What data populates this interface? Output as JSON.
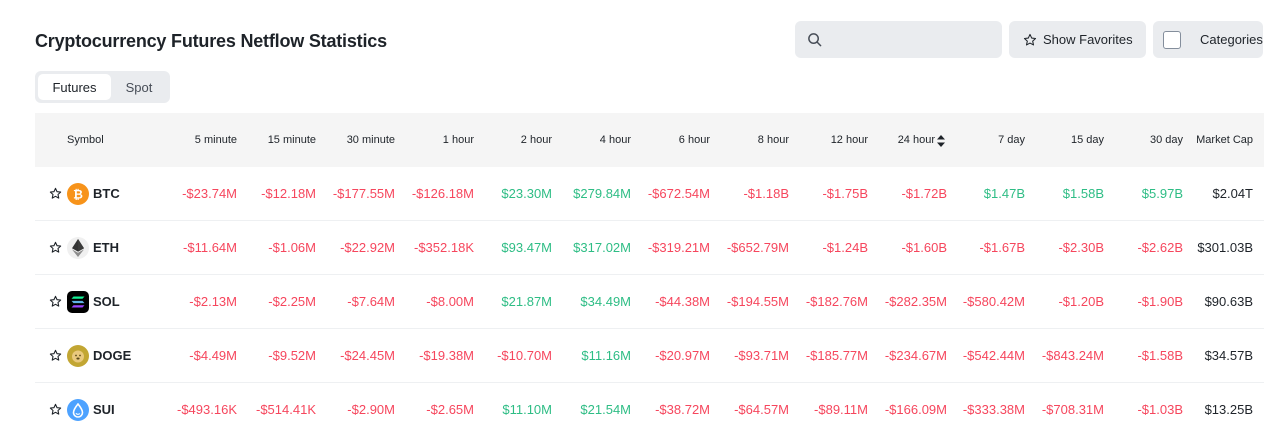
{
  "page": {
    "title": "Cryptocurrency Futures Netflow Statistics"
  },
  "toolbar": {
    "search_placeholder": "",
    "show_favorites_label": "Show Favorites",
    "categories_label": "Categories"
  },
  "tabs": [
    {
      "label": "Futures",
      "active": true
    },
    {
      "label": "Spot",
      "active": false
    }
  ],
  "colors": {
    "negative": "#f6465d",
    "positive": "#2ebd85",
    "header_bg": "#f5f5f5"
  },
  "table": {
    "headers": [
      "Symbol",
      "5 minute",
      "15 minute",
      "30 minute",
      "1 hour",
      "2 hour",
      "4 hour",
      "6 hour",
      "8 hour",
      "12 hour",
      "24 hour",
      "7 day",
      "15 day",
      "30 day",
      "Market Cap"
    ],
    "sorted_column": "24 hour",
    "rows": [
      {
        "symbol": "BTC",
        "icon": "bitcoin-icon",
        "values": [
          "-$23.74M",
          "-$12.18M",
          "-$177.55M",
          "-$126.18M",
          "$23.30M",
          "$279.84M",
          "-$672.54M",
          "-$1.18B",
          "-$1.75B",
          "-$1.72B",
          "$1.47B",
          "$1.58B",
          "$5.97B"
        ],
        "market_cap": "$2.04T"
      },
      {
        "symbol": "ETH",
        "icon": "ethereum-icon",
        "values": [
          "-$11.64M",
          "-$1.06M",
          "-$22.92M",
          "-$352.18K",
          "$93.47M",
          "$317.02M",
          "-$319.21M",
          "-$652.79M",
          "-$1.24B",
          "-$1.60B",
          "-$1.67B",
          "-$2.30B",
          "-$2.62B"
        ],
        "market_cap": "$301.03B"
      },
      {
        "symbol": "SOL",
        "icon": "solana-icon",
        "values": [
          "-$2.13M",
          "-$2.25M",
          "-$7.64M",
          "-$8.00M",
          "$21.87M",
          "$34.49M",
          "-$44.38M",
          "-$194.55M",
          "-$182.76M",
          "-$282.35M",
          "-$580.42M",
          "-$1.20B",
          "-$1.90B"
        ],
        "market_cap": "$90.63B"
      },
      {
        "symbol": "DOGE",
        "icon": "dogecoin-icon",
        "values": [
          "-$4.49M",
          "-$9.52M",
          "-$24.45M",
          "-$19.38M",
          "-$10.70M",
          "$11.16M",
          "-$20.97M",
          "-$93.71M",
          "-$185.77M",
          "-$234.67M",
          "-$542.44M",
          "-$843.24M",
          "-$1.58B"
        ],
        "market_cap": "$34.57B"
      },
      {
        "symbol": "SUI",
        "icon": "sui-icon",
        "values": [
          "-$493.16K",
          "-$514.41K",
          "-$2.90M",
          "-$2.65M",
          "$11.10M",
          "$21.54M",
          "-$38.72M",
          "-$64.57M",
          "-$89.11M",
          "-$166.09M",
          "-$333.38M",
          "-$708.31M",
          "-$1.03B"
        ],
        "market_cap": "$13.25B"
      }
    ]
  }
}
